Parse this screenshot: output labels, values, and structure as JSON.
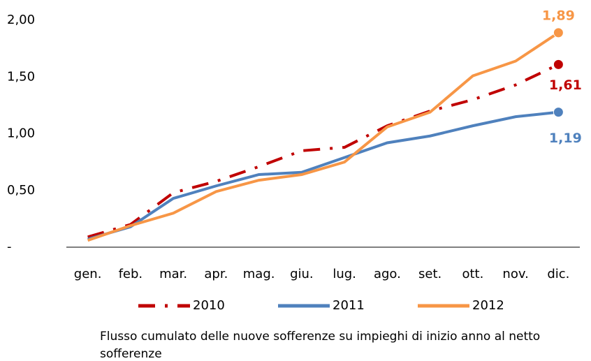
{
  "chart_data": {
    "type": "line",
    "categories": [
      "gen.",
      "feb.",
      "mar.",
      "apr.",
      "mag.",
      "giu.",
      "lug.",
      "ago.",
      "set.",
      "ott.",
      "nov.",
      "dic."
    ],
    "series": [
      {
        "name": "2010",
        "color": "#c00000",
        "line_style": "dash-dot",
        "values": [
          0.09,
          0.2,
          0.48,
          0.58,
          0.71,
          0.85,
          0.88,
          1.07,
          1.2,
          1.3,
          1.43,
          1.61
        ],
        "value_labels": [
          null,
          null,
          null,
          null,
          null,
          null,
          null,
          null,
          null,
          null,
          null,
          "1,61"
        ]
      },
      {
        "name": "2011",
        "color": "#4f81bd",
        "line_style": "solid",
        "values": [
          0.07,
          0.18,
          0.43,
          0.54,
          0.64,
          0.66,
          0.79,
          0.92,
          0.98,
          1.07,
          1.15,
          1.19
        ],
        "value_labels": [
          null,
          null,
          null,
          null,
          null,
          null,
          null,
          null,
          null,
          null,
          null,
          "1,19"
        ]
      },
      {
        "name": "2012",
        "color": "#f79646",
        "line_style": "solid",
        "values": [
          0.06,
          0.19,
          0.3,
          0.49,
          0.59,
          0.64,
          0.75,
          1.06,
          1.19,
          1.51,
          1.64,
          1.89
        ],
        "value_labels": [
          null,
          null,
          null,
          null,
          null,
          null,
          null,
          null,
          null,
          null,
          null,
          "1,89"
        ]
      }
    ],
    "ylim": [
      0,
      2
    ],
    "yticks": [
      {
        "value": 0,
        "label": "-"
      },
      {
        "value": 0.5,
        "label": "0,50"
      },
      {
        "value": 1,
        "label": "1,00"
      },
      {
        "value": 1.5,
        "label": "1,50"
      },
      {
        "value": 2,
        "label": "2,00"
      }
    ],
    "grid": false,
    "legend": "bottom",
    "note": "Flusso cumulato delle nuove sofferenze su impieghi di inizio anno al netto sofferenze"
  }
}
